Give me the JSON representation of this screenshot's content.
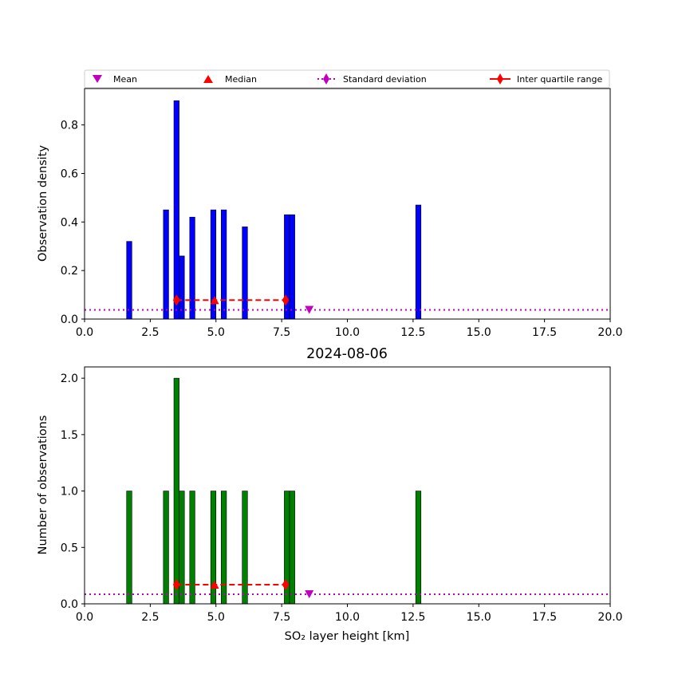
{
  "figure": {
    "title": "2024-08-06",
    "legend": {
      "placement": "above-top-axes",
      "entries": [
        {
          "label": "Mean",
          "marker": "triangle-down",
          "color": "#bf00bf"
        },
        {
          "label": "Median",
          "marker": "triangle-up",
          "color": "#ff0000"
        },
        {
          "label": "Standard deviation",
          "marker": "diamond-dotted-line",
          "color": "#bf00bf"
        },
        {
          "label": "Inter quartile range",
          "marker": "diamond-dashed-line",
          "color": "#ff0000"
        }
      ]
    }
  },
  "chart_data": [
    {
      "type": "bar",
      "ylabel": "Observation density",
      "xlabel": "",
      "xlim": [
        0,
        20
      ],
      "ylim": [
        0,
        0.95
      ],
      "xticks": [
        "0.0",
        "2.5",
        "5.0",
        "7.5",
        "10.0",
        "12.5",
        "15.0",
        "17.5",
        "20.0"
      ],
      "yticks": [
        "0.0",
        "0.2",
        "0.4",
        "0.6",
        "0.8"
      ],
      "bar_color": "#0000ff",
      "bar_width": 0.2,
      "bars": [
        {
          "x": 1.6,
          "value": 0.32
        },
        {
          "x": 3.0,
          "value": 0.45
        },
        {
          "x": 3.4,
          "value": 0.9
        },
        {
          "x": 3.6,
          "value": 0.26
        },
        {
          "x": 4.0,
          "value": 0.42
        },
        {
          "x": 4.8,
          "value": 0.45
        },
        {
          "x": 5.2,
          "value": 0.45
        },
        {
          "x": 6.0,
          "value": 0.38
        },
        {
          "x": 7.6,
          "value": 0.43
        },
        {
          "x": 7.8,
          "value": 0.43
        },
        {
          "x": 12.6,
          "value": 0.47
        }
      ],
      "std_dev_level": 0.038,
      "mean": {
        "x": 8.55,
        "y": 0.038
      },
      "median": {
        "x": 4.95,
        "y": 0.078
      },
      "iqr": {
        "x0": 3.5,
        "x1": 7.65,
        "y": 0.078
      }
    },
    {
      "type": "bar",
      "ylabel": "Number of observations",
      "xlabel": "SO₂ layer height [km]",
      "xlim": [
        0,
        20
      ],
      "ylim": [
        0,
        2.1
      ],
      "xticks": [
        "0.0",
        "2.5",
        "5.0",
        "7.5",
        "10.0",
        "12.5",
        "15.0",
        "17.5",
        "20.0"
      ],
      "yticks": [
        "0.0",
        "0.5",
        "1.0",
        "1.5",
        "2.0"
      ],
      "bar_color": "#008000",
      "bar_width": 0.2,
      "bars": [
        {
          "x": 1.6,
          "value": 1
        },
        {
          "x": 3.0,
          "value": 1
        },
        {
          "x": 3.4,
          "value": 2
        },
        {
          "x": 3.6,
          "value": 1
        },
        {
          "x": 4.0,
          "value": 1
        },
        {
          "x": 4.8,
          "value": 1
        },
        {
          "x": 5.2,
          "value": 1
        },
        {
          "x": 6.0,
          "value": 1
        },
        {
          "x": 7.6,
          "value": 1
        },
        {
          "x": 7.8,
          "value": 1
        },
        {
          "x": 12.6,
          "value": 1
        }
      ],
      "std_dev_level": 0.085,
      "mean": {
        "x": 8.55,
        "y": 0.085
      },
      "median": {
        "x": 4.95,
        "y": 0.17
      },
      "iqr": {
        "x0": 3.5,
        "x1": 7.65,
        "y": 0.17
      }
    }
  ]
}
